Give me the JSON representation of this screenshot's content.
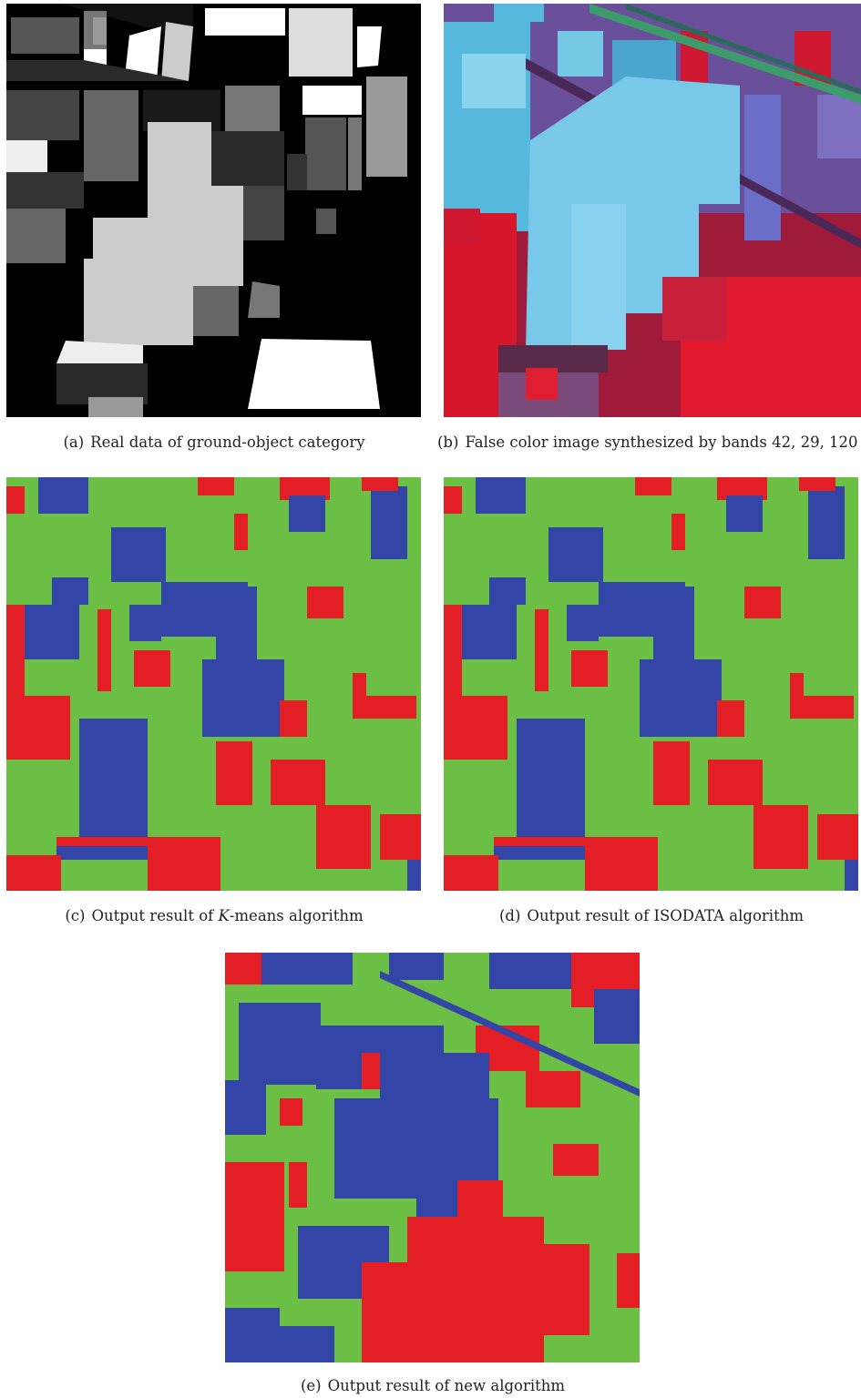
{
  "figure": {
    "panels": [
      {
        "id": "a",
        "label": "(a)",
        "caption": "Real data of ground-object category"
      },
      {
        "id": "b",
        "label": "(b)",
        "caption": "False color image synthesized by bands 42, 29, 120"
      },
      {
        "id": "c",
        "label": "(c)",
        "caption_prefix": "Output result of ",
        "caption_italic": "K",
        "caption_suffix": "-means algorithm"
      },
      {
        "id": "d",
        "label": "(d)",
        "caption": "Output result of ISODATA algorithm"
      },
      {
        "id": "e",
        "label": "(e)",
        "caption": "Output result of new algorithm"
      }
    ]
  },
  "colors": {
    "class_green": "#6cbf45",
    "class_blue": "#3445a8",
    "class_red": "#e41e25",
    "false_color_cyan": "#55b8dc",
    "false_color_red": "#d01830",
    "ground_truth_black": "#000000"
  }
}
